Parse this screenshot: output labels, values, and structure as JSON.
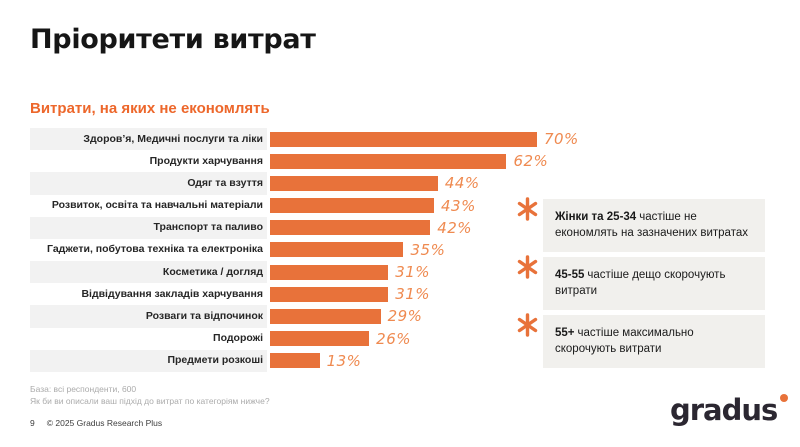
{
  "slide": {
    "title": "Пріоритети витрат",
    "subtitle": "Витрати, на яких не економлять"
  },
  "chart_data": {
    "type": "bar",
    "orientation": "horizontal",
    "title": "Витрати, на яких не економлять",
    "categories": [
      "Здоров’я, Медичні послуги та ліки",
      "Продукти харчування",
      "Одяг та взуття",
      "Розвиток, освіта та навчальні матеріали",
      "Транспорт та паливо",
      "Гаджети, побутова техніка та електроніка",
      "Косметика / догляд",
      "Відвідування закладів харчування",
      "Розваги та відпочинок",
      "Подорожі",
      "Предмети розкоші"
    ],
    "values": [
      70,
      62,
      44,
      43,
      42,
      35,
      31,
      31,
      29,
      26,
      13
    ],
    "unit": "%",
    "value_labels": [
      "70%",
      "62%",
      "44%",
      "43%",
      "42%",
      "35%",
      "31%",
      "31%",
      "29%",
      "26%",
      "13%"
    ],
    "xlim": [
      0,
      100
    ],
    "grid": false,
    "legend": "none",
    "bar_color": "#E8723A",
    "row_stripe_color": "#F2F2F2"
  },
  "callouts": [
    {
      "bold": "Жінки та 25-34",
      "text": "частіше не економлять на зазначених витратах"
    },
    {
      "bold": "45-55",
      "text": "частіше дещо скорочують витрати"
    },
    {
      "bold": "55+",
      "text": "частіше максимально скорочують витрати"
    }
  ],
  "footnote": {
    "line1": "База: всі респонденти, 600",
    "line2": "Як би ви описали ваш підхід до витрат по категоріям нижче?"
  },
  "footer": {
    "page_number": "9",
    "copyright": "© 2025 Gradus Research Plus"
  },
  "logo": {
    "text": "gradus"
  },
  "icons": {
    "callout_marker": "asterisk"
  },
  "colors": {
    "accent_orange": "#E8723A",
    "value_label_orange": "#EF8A50",
    "subtitle_orange": "#ED672B",
    "stripe_gray": "#F2F2F2",
    "callout_box_gray": "#F1F0ED",
    "footnote_gray": "#ABABAB",
    "title_black": "#161616"
  }
}
